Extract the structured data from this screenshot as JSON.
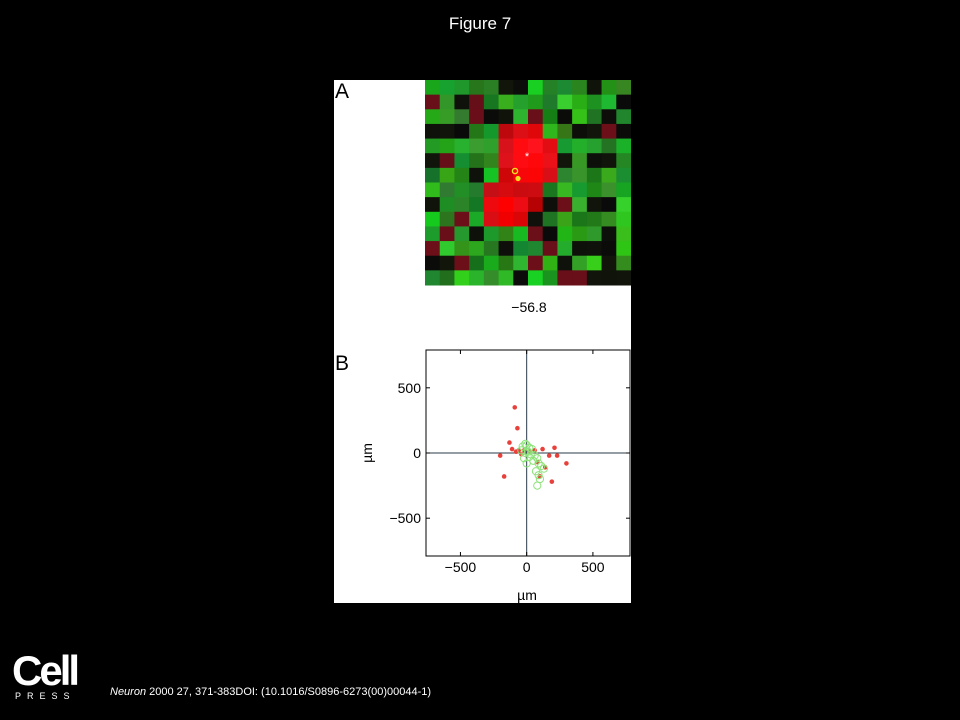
{
  "figure": {
    "title": "Figure 7"
  },
  "panel_a": {
    "label": "A",
    "value_label": "−56.8",
    "grid_rows": 14,
    "grid_cols": 14,
    "peak_marker": "*"
  },
  "panel_b": {
    "label": "B"
  },
  "chart_data": {
    "type": "scatter",
    "title": "",
    "xlabel": "µm",
    "ylabel": "µm",
    "xlim": [
      -760,
      780
    ],
    "ylim": [
      -790,
      790
    ],
    "x_ticks": [
      -500,
      0,
      500
    ],
    "y_ticks": [
      500,
      0,
      -500
    ],
    "x_tick_labels": [
      "−500",
      "0",
      "500"
    ],
    "y_tick_labels": [
      "500",
      "0",
      "−500"
    ],
    "grid": false,
    "series": [
      {
        "marker": "filled-star",
        "color": "#e8403a",
        "points": [
          [
            -90,
            350
          ],
          [
            -70,
            190
          ],
          [
            -130,
            80
          ],
          [
            -110,
            30
          ],
          [
            -80,
            10
          ],
          [
            -60,
            20
          ],
          [
            -40,
            -10
          ],
          [
            -200,
            -20
          ],
          [
            -170,
            -180
          ],
          [
            -20,
            20
          ],
          [
            20,
            10
          ],
          [
            60,
            20
          ],
          [
            80,
            -70
          ],
          [
            100,
            -180
          ],
          [
            140,
            -110
          ],
          [
            170,
            -20
          ],
          [
            190,
            -220
          ],
          [
            210,
            40
          ],
          [
            230,
            -20
          ],
          [
            300,
            -80
          ],
          [
            120,
            30
          ]
        ]
      },
      {
        "marker": "open-circle",
        "color": "#8ee27a",
        "points": [
          [
            -10,
            70
          ],
          [
            0,
            60
          ],
          [
            20,
            40
          ],
          [
            40,
            30
          ],
          [
            -40,
            20
          ],
          [
            -10,
            0
          ],
          [
            30,
            -10
          ],
          [
            60,
            -20
          ],
          [
            80,
            -40
          ],
          [
            20,
            -30
          ],
          [
            50,
            -60
          ],
          [
            90,
            -80
          ],
          [
            110,
            -100
          ],
          [
            130,
            -120
          ],
          [
            70,
            -140
          ],
          [
            90,
            -170
          ],
          [
            100,
            -200
          ],
          [
            80,
            -250
          ],
          [
            -20,
            -40
          ],
          [
            0,
            -80
          ],
          [
            -30,
            50
          ],
          [
            10,
            10
          ]
        ]
      }
    ]
  },
  "citation": {
    "journal": "Neuron",
    "rest": " 2000 27, 371-383DOI: (10.1016/S0896-6273(00)00044-1)"
  },
  "logo": {
    "top": "Cell",
    "bottom": "PRESS"
  }
}
